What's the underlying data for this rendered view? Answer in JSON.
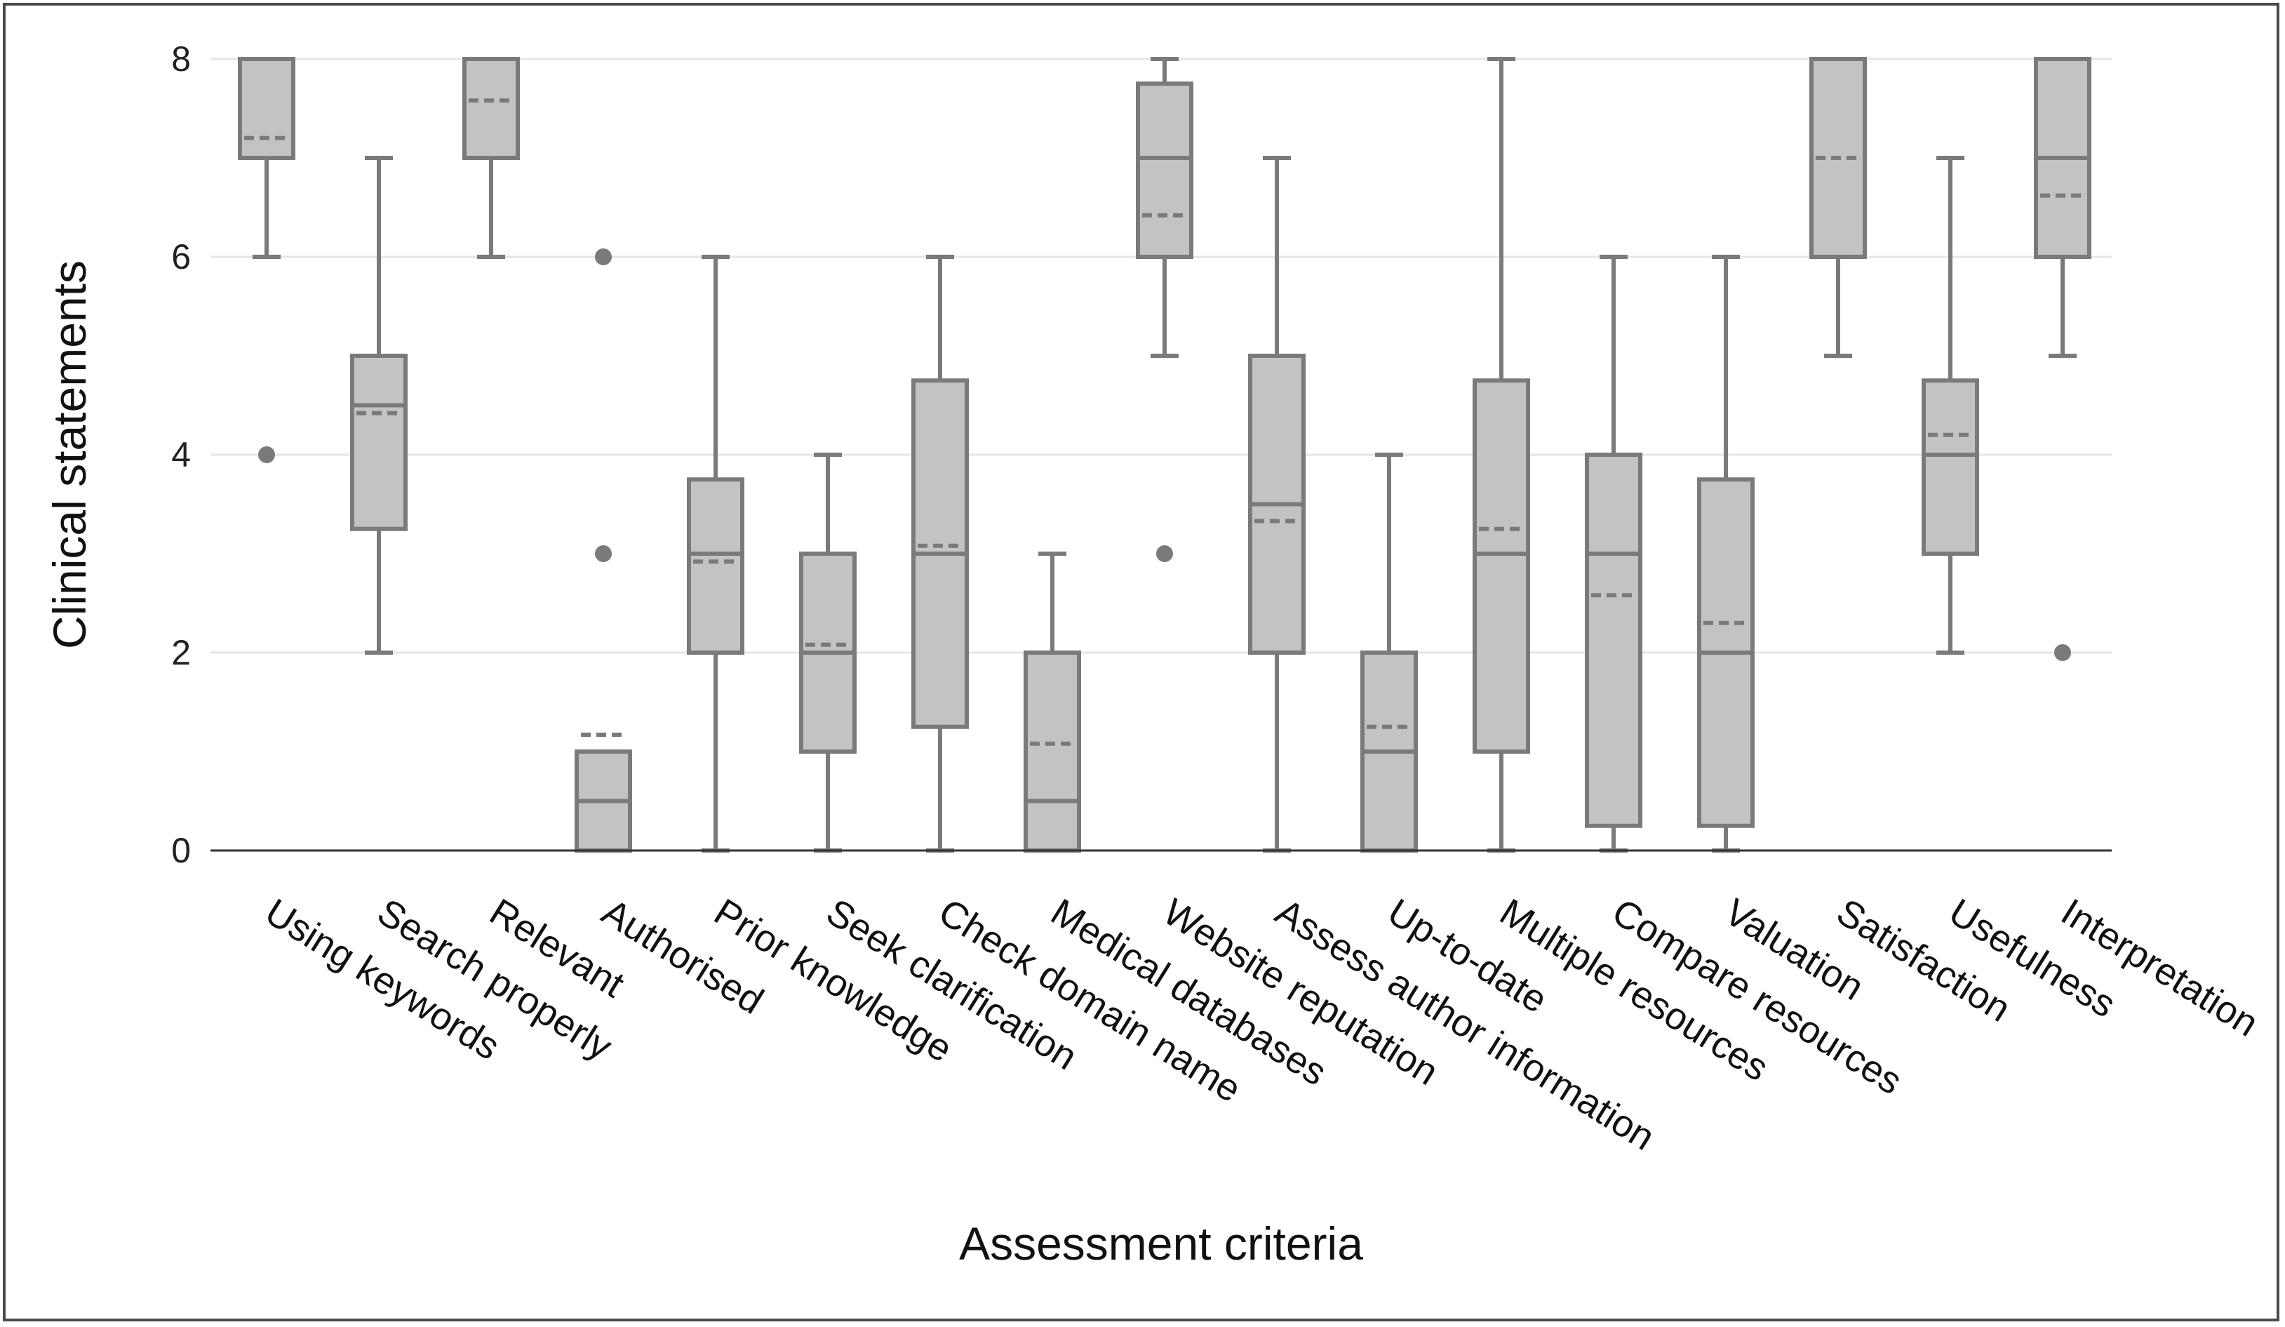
{
  "chart_data": {
    "type": "box",
    "title": "",
    "xlabel": "Assessment criteria",
    "ylabel": "Clinical statements",
    "ylim": [
      0,
      8
    ],
    "yticks": [
      0,
      2,
      4,
      6,
      8
    ],
    "grid": true,
    "colors": {
      "box_fill": "#c3c3c3",
      "box_stroke": "#7a7a7a",
      "grid": "#e6e6e6",
      "axis": "#333333"
    },
    "series": [
      {
        "name": "Using keywords",
        "min": 6,
        "q1": 7,
        "median": 7,
        "q3": 8,
        "max": 8,
        "mean": 7.2,
        "outliers": [
          4
        ]
      },
      {
        "name": "Search properly",
        "min": 2,
        "q1": 3.25,
        "median": 4.5,
        "q3": 5,
        "max": 7,
        "mean": 4.42,
        "outliers": []
      },
      {
        "name": "Relevant",
        "min": 6,
        "q1": 7,
        "median": 8,
        "q3": 8,
        "max": 8,
        "mean": 7.58,
        "outliers": []
      },
      {
        "name": "Authorised",
        "min": 0,
        "q1": 0,
        "median": 0.5,
        "q3": 1,
        "max": 1,
        "mean": 1.17,
        "outliers": [
          3,
          6
        ]
      },
      {
        "name": "Prior knowledge",
        "min": 0,
        "q1": 2,
        "median": 3,
        "q3": 3.75,
        "max": 6,
        "mean": 2.92,
        "outliers": []
      },
      {
        "name": "Seek clarification",
        "min": 0,
        "q1": 1,
        "median": 2,
        "q3": 3,
        "max": 4,
        "mean": 2.08,
        "outliers": []
      },
      {
        "name": "Check domain name",
        "min": 0,
        "q1": 1.25,
        "median": 3,
        "q3": 4.75,
        "max": 6,
        "mean": 3.08,
        "outliers": []
      },
      {
        "name": "Medical databases",
        "min": 0,
        "q1": 0,
        "median": 0.5,
        "q3": 2,
        "max": 3,
        "mean": 1.08,
        "outliers": []
      },
      {
        "name": "Website reputation",
        "min": 5,
        "q1": 6,
        "median": 7,
        "q3": 7.75,
        "max": 8,
        "mean": 6.42,
        "outliers": [
          3
        ]
      },
      {
        "name": "Assess author information",
        "min": 0,
        "q1": 2,
        "median": 3.5,
        "q3": 5,
        "max": 7,
        "mean": 3.33,
        "outliers": []
      },
      {
        "name": "Up-to-date",
        "min": 0,
        "q1": 0,
        "median": 1,
        "q3": 2,
        "max": 4,
        "mean": 1.25,
        "outliers": []
      },
      {
        "name": "Multiple resources",
        "min": 0,
        "q1": 1,
        "median": 3,
        "q3": 4.75,
        "max": 8,
        "mean": 3.25,
        "outliers": []
      },
      {
        "name": "Compare resources",
        "min": 0,
        "q1": 0.25,
        "median": 3,
        "q3": 4,
        "max": 6,
        "mean": 2.58,
        "outliers": []
      },
      {
        "name": "Valuation",
        "min": 0,
        "q1": 0.25,
        "median": 2,
        "q3": 3.75,
        "max": 6,
        "mean": 2.3,
        "outliers": []
      },
      {
        "name": "Satisfaction",
        "min": 5,
        "q1": 6,
        "median": 8,
        "q3": 8,
        "max": 8,
        "mean": 7,
        "outliers": []
      },
      {
        "name": "Usefulness",
        "min": 2,
        "q1": 3,
        "median": 4,
        "q3": 4.75,
        "max": 7,
        "mean": 4.2,
        "outliers": []
      },
      {
        "name": "Interpretation",
        "min": 5,
        "q1": 6,
        "median": 7,
        "q3": 8,
        "max": 8,
        "mean": 6.62,
        "outliers": [
          2
        ]
      }
    ]
  }
}
